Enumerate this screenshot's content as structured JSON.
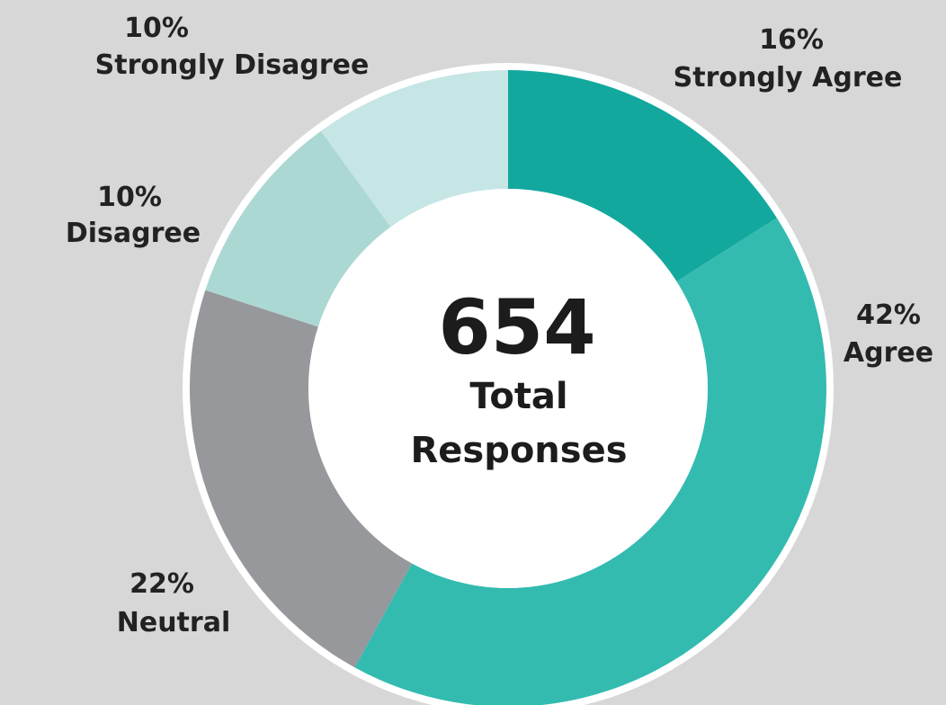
{
  "chart_data": {
    "type": "pie",
    "style": "donut",
    "center": {
      "value": "654",
      "caption_line1": "Total",
      "caption_line2": "Responses"
    },
    "slices": [
      {
        "label": "Strongly Agree",
        "percent_label": "16%",
        "value": 16,
        "color": "#13a89e"
      },
      {
        "label": "Agree",
        "percent_label": "42%",
        "value": 42,
        "color": "#33bbb0"
      },
      {
        "label": "Neutral",
        "percent_label": "22%",
        "value": 22,
        "color": "#97989b"
      },
      {
        "label": "Disagree",
        "percent_label": "10%",
        "value": 10,
        "color": "#acd8d4"
      },
      {
        "label": "Strongly Disagree",
        "percent_label": "10%",
        "value": 10,
        "color": "#c6e5e5"
      }
    ],
    "legend": "none",
    "background_color": "#d7d7d7"
  }
}
